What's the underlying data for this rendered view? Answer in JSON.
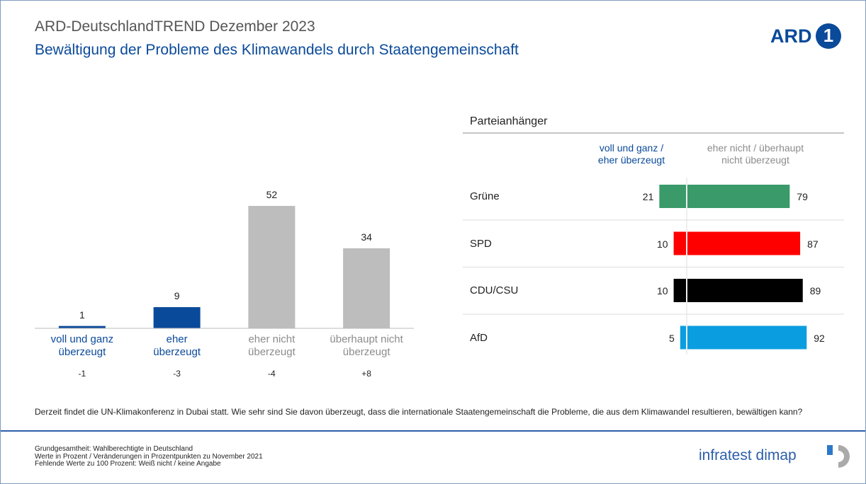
{
  "header": {
    "title": "ARD-DeutschlandTREND Dezember 2023",
    "subtitle": "Bewältigung der Probleme des Klimawandels durch Staatengemeinschaft",
    "logo": "ARD",
    "logo_number": "1"
  },
  "chart_data": [
    {
      "type": "bar",
      "categories": [
        "voll und ganz\nüberzeugt",
        "eher\nüberzeugt",
        "eher nicht\nüberzeugt",
        "überhaupt nicht\nüberzeugt"
      ],
      "values": [
        1,
        9,
        52,
        34
      ],
      "colors": [
        "#0a4a9a",
        "#0a4a9a",
        "#bdbdbd",
        "#bdbdbd"
      ],
      "label_colors": [
        "#0a4a9a",
        "#0a4a9a",
        "#8c8c8c",
        "#8c8c8c"
      ],
      "changes": [
        "-1",
        "-3",
        "-4",
        "+8"
      ],
      "ylim": [
        0,
        55
      ]
    },
    {
      "type": "diverging_bar",
      "title": "Parteianhänger",
      "categories": [
        "Grüne",
        "SPD",
        "CDU/CSU",
        "AfD"
      ],
      "colors": [
        "#3a9a6a",
        "#ff0000",
        "#000000",
        "#0a9ee0"
      ],
      "series": [
        {
          "name": "voll und ganz /\neher überzeugt",
          "color": "#0a4a9a",
          "values": [
            21,
            10,
            10,
            5
          ]
        },
        {
          "name": "eher nicht / überhaupt\nnicht überzeugt",
          "color": "#8c8c8c",
          "values": [
            79,
            87,
            89,
            92
          ]
        }
      ],
      "xlim": [
        -100,
        100
      ]
    }
  ],
  "question": "Derzeit findet die UN-Klimakonferenz in Dubai statt. Wie sehr sind Sie davon überzeugt, dass die internationale Staatengemeinschaft die Probleme, die aus dem Klimawandel resultieren, bewältigen kann?",
  "footer": {
    "notes": [
      "Grundgesamtheit: Wahlberechtigte in Deutschland",
      "Werte in Prozent / Veränderungen in Prozentpunkten zu November 2021",
      "Fehlende Werte zu 100 Prozent: Weiß nicht / keine Angabe"
    ],
    "brand": "infratest dimap"
  }
}
